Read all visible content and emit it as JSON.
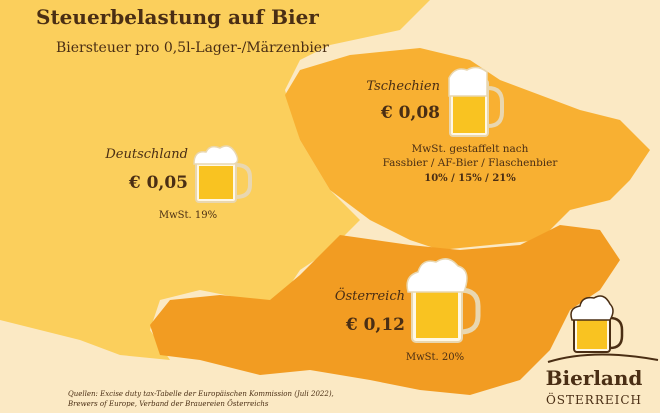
{
  "header": {
    "title": "Steuerbelastung auf Bier",
    "subtitle": "Biersteuer pro 0,5l-Lager-/Märzenbier"
  },
  "countries": [
    {
      "name": "Deutschland",
      "tax": "€ 0,05",
      "vat_lines": [
        "MwSt. 19%"
      ]
    },
    {
      "name": "Tschechien",
      "tax": "€ 0,08",
      "vat_lines": [
        "MwSt. gestaffelt nach",
        "Fassbier / AF-Bier / Flaschenbier",
        "10% / 15% / 21%"
      ]
    },
    {
      "name": "Österreich",
      "tax": "€ 0,12",
      "vat_lines": [
        "MwSt. 20%"
      ]
    }
  ],
  "sources": [
    "Quellen: Excise duty tax-Tabelle der Europäischen Kommission (Juli 2022),",
    "Brewers of Europe, Verband der Brauereien Österreichs"
  ],
  "logo": {
    "line1": "Bierland",
    "line2": "ÖSTERREICH"
  }
}
